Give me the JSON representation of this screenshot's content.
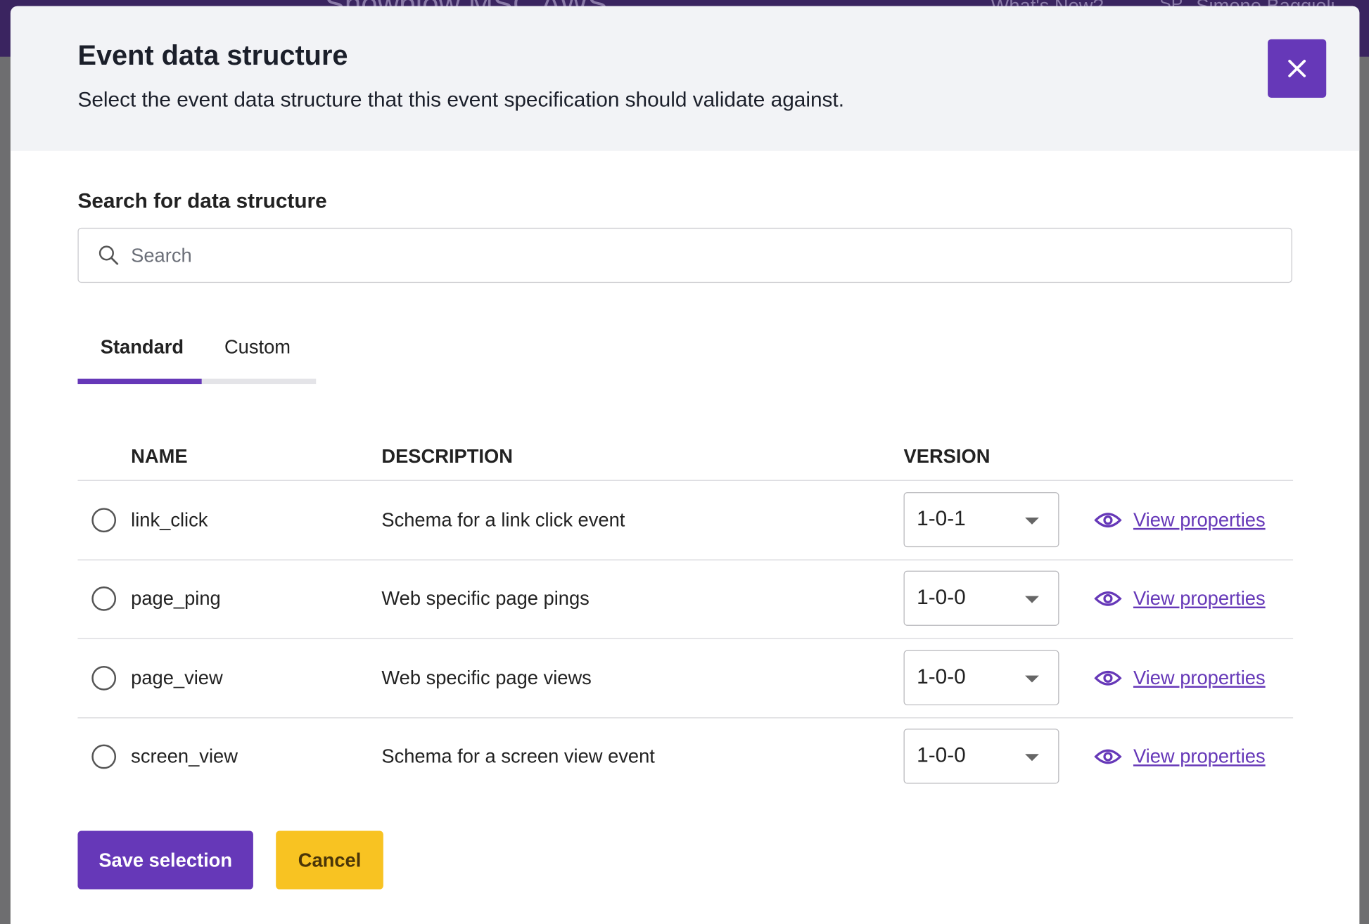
{
  "background": {
    "app_title": "Snowplow MSC AWS",
    "whats_new": "What's New?",
    "user_initials": "SP",
    "user_name": "Simone Baggioli"
  },
  "modal": {
    "title": "Event data structure",
    "subtitle": "Select the event data structure that this event specification should validate against.",
    "search_label": "Search for data structure",
    "search_placeholder": "Search",
    "tabs": [
      "Standard",
      "Custom"
    ],
    "table": {
      "headers": [
        "NAME",
        "DESCRIPTION",
        "VERSION"
      ],
      "rows": [
        {
          "name": "link_click",
          "description": "Schema for a link click event",
          "version": "1-0-1",
          "action": "View properties"
        },
        {
          "name": "page_ping",
          "description": "Web specific page pings",
          "version": "1-0-0",
          "action": "View properties"
        },
        {
          "name": "page_view",
          "description": "Web specific page views",
          "version": "1-0-0",
          "action": "View properties"
        },
        {
          "name": "screen_view",
          "description": "Schema for a screen view event",
          "version": "1-0-0",
          "action": "View properties"
        }
      ]
    },
    "buttons": {
      "save": "Save selection",
      "cancel": "Cancel"
    }
  }
}
